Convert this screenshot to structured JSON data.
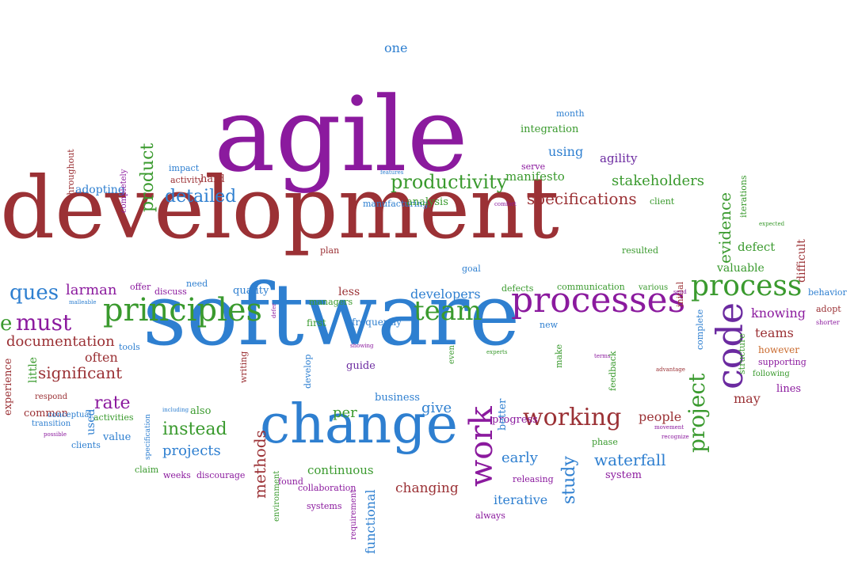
{
  "palette": {
    "purple": "#8b1a9e",
    "maroon": "#9b3135",
    "blue": "#2e7fd0",
    "green": "#3a9a2e",
    "orange": "#c9692c",
    "violet": "#6b2aa0"
  },
  "words": [
    {
      "text": "agile",
      "color": "purple",
      "vertical": false
    },
    {
      "text": "development",
      "color": "maroon",
      "vertical": false
    },
    {
      "text": "software",
      "color": "blue",
      "vertical": false
    },
    {
      "text": "change",
      "color": "blue",
      "vertical": false
    },
    {
      "text": "processes",
      "color": "purple",
      "vertical": false
    },
    {
      "text": "principles",
      "color": "green",
      "vertical": false
    },
    {
      "text": "process",
      "color": "green",
      "vertical": false
    },
    {
      "text": "code",
      "color": "violet",
      "vertical": true
    },
    {
      "text": "team",
      "color": "green",
      "vertical": false
    },
    {
      "text": "work",
      "color": "purple",
      "vertical": true
    },
    {
      "text": "working",
      "color": "maroon",
      "vertical": false
    },
    {
      "text": "must",
      "color": "purple",
      "vertical": false
    },
    {
      "text": "productivity",
      "color": "green",
      "vertical": false
    },
    {
      "text": "project",
      "color": "green",
      "vertical": true
    },
    {
      "text": "detailed",
      "color": "blue",
      "vertical": false
    },
    {
      "text": "specifications",
      "color": "maroon",
      "vertical": false
    },
    {
      "text": "stakeholders",
      "color": "green",
      "vertical": false
    },
    {
      "text": "product",
      "color": "green",
      "vertical": true
    },
    {
      "text": "significant",
      "color": "maroon",
      "vertical": false
    },
    {
      "text": "instead",
      "color": "green",
      "vertical": false
    },
    {
      "text": "waterfall",
      "color": "blue",
      "vertical": false
    },
    {
      "text": "study",
      "color": "blue",
      "vertical": true
    },
    {
      "text": "early",
      "color": "blue",
      "vertical": false
    },
    {
      "text": "one",
      "color": "blue",
      "vertical": false
    },
    {
      "text": "using",
      "color": "blue",
      "vertical": false
    },
    {
      "text": "agility",
      "color": "violet",
      "vertical": false
    },
    {
      "text": "integration",
      "color": "green",
      "vertical": false
    },
    {
      "text": "month",
      "color": "blue",
      "vertical": false
    },
    {
      "text": "manifesto",
      "color": "green",
      "vertical": false
    },
    {
      "text": "serve",
      "color": "purple",
      "vertical": false
    },
    {
      "text": "client",
      "color": "green",
      "vertical": false
    },
    {
      "text": "evidence",
      "color": "green",
      "vertical": true
    },
    {
      "text": "iterations",
      "color": "green",
      "vertical": true
    },
    {
      "text": "expected",
      "color": "green",
      "vertical": false
    },
    {
      "text": "defect",
      "color": "green",
      "vertical": false
    },
    {
      "text": "valuable",
      "color": "green",
      "vertical": false
    },
    {
      "text": "difficult",
      "color": "maroon",
      "vertical": true
    },
    {
      "text": "behavior",
      "color": "blue",
      "vertical": false
    },
    {
      "text": "adopt",
      "color": "maroon",
      "vertical": false
    },
    {
      "text": "shorter",
      "color": "purple",
      "vertical": false
    },
    {
      "text": "knowing",
      "color": "purple",
      "vertical": false
    },
    {
      "text": "teams",
      "color": "maroon",
      "vertical": false
    },
    {
      "text": "however",
      "color": "orange",
      "vertical": false
    },
    {
      "text": "supporting",
      "color": "purple",
      "vertical": false
    },
    {
      "text": "following",
      "color": "green",
      "vertical": false
    },
    {
      "text": "lines",
      "color": "purple",
      "vertical": false
    },
    {
      "text": "may",
      "color": "maroon",
      "vertical": false
    },
    {
      "text": "people",
      "color": "maroon",
      "vertical": false
    },
    {
      "text": "structure",
      "color": "green",
      "vertical": true
    },
    {
      "text": "complete",
      "color": "blue",
      "vertical": true
    },
    {
      "text": "initial",
      "color": "maroon",
      "vertical": true
    },
    {
      "text": "send",
      "color": "purple",
      "vertical": false
    },
    {
      "text": "various",
      "color": "green",
      "vertical": false
    },
    {
      "text": "advantage",
      "color": "maroon",
      "vertical": false
    },
    {
      "text": "terms",
      "color": "purple",
      "vertical": false
    },
    {
      "text": "feedback",
      "color": "green",
      "vertical": true
    },
    {
      "text": "make",
      "color": "green",
      "vertical": true
    },
    {
      "text": "phase",
      "color": "green",
      "vertical": false
    },
    {
      "text": "movement",
      "color": "purple",
      "vertical": false
    },
    {
      "text": "recognize",
      "color": "purple",
      "vertical": false
    },
    {
      "text": "system",
      "color": "purple",
      "vertical": false
    },
    {
      "text": "iterative",
      "color": "blue",
      "vertical": false
    },
    {
      "text": "releasing",
      "color": "purple",
      "vertical": false
    },
    {
      "text": "always",
      "color": "purple",
      "vertical": false
    },
    {
      "text": "changing",
      "color": "maroon",
      "vertical": false
    },
    {
      "text": "continuous",
      "color": "green",
      "vertical": false
    },
    {
      "text": "functional",
      "color": "blue",
      "vertical": true
    },
    {
      "text": "requirement",
      "color": "purple",
      "vertical": true
    },
    {
      "text": "systems",
      "color": "purple",
      "vertical": false
    },
    {
      "text": "collaboration",
      "color": "purple",
      "vertical": false
    },
    {
      "text": "found",
      "color": "purple",
      "vertical": false
    },
    {
      "text": "environment",
      "color": "green",
      "vertical": true
    },
    {
      "text": "methods",
      "color": "maroon",
      "vertical": true
    },
    {
      "text": "discourage",
      "color": "purple",
      "vertical": false
    },
    {
      "text": "weeks",
      "color": "purple",
      "vertical": false
    },
    {
      "text": "claim",
      "color": "green",
      "vertical": false
    },
    {
      "text": "specification",
      "color": "blue",
      "vertical": true
    },
    {
      "text": "projects",
      "color": "blue",
      "vertical": false
    },
    {
      "text": "value",
      "color": "blue",
      "vertical": false
    },
    {
      "text": "clients",
      "color": "blue",
      "vertical": false
    },
    {
      "text": "activities",
      "color": "green",
      "vertical": false
    },
    {
      "text": "also",
      "color": "green",
      "vertical": false
    },
    {
      "text": "including",
      "color": "blue",
      "vertical": false
    },
    {
      "text": "used",
      "color": "blue",
      "vertical": true
    },
    {
      "text": "rate",
      "color": "purple",
      "vertical": false
    },
    {
      "text": "common",
      "color": "maroon",
      "vertical": false
    },
    {
      "text": "transition",
      "color": "blue",
      "vertical": false
    },
    {
      "text": "possible",
      "color": "purple",
      "vertical": false
    },
    {
      "text": "conceptual",
      "color": "blue",
      "vertical": false
    },
    {
      "text": "respond",
      "color": "maroon",
      "vertical": false
    },
    {
      "text": "little",
      "color": "green",
      "vertical": true
    },
    {
      "text": "experience",
      "color": "maroon",
      "vertical": true
    },
    {
      "text": "documentation",
      "color": "maroon",
      "vertical": false
    },
    {
      "text": "tools",
      "color": "blue",
      "vertical": false
    },
    {
      "text": "often",
      "color": "maroon",
      "vertical": false
    },
    {
      "text": "ques",
      "color": "blue",
      "vertical": false
    },
    {
      "text": "e",
      "color": "green",
      "vertical": false
    },
    {
      "text": "larman",
      "color": "purple",
      "vertical": false
    },
    {
      "text": "malleable",
      "color": "blue",
      "vertical": false
    },
    {
      "text": "offer",
      "color": "purple",
      "vertical": false
    },
    {
      "text": "discuss",
      "color": "purple",
      "vertical": false
    },
    {
      "text": "need",
      "color": "blue",
      "vertical": false
    },
    {
      "text": "quality",
      "color": "blue",
      "vertical": false
    },
    {
      "text": "less",
      "color": "maroon",
      "vertical": false
    },
    {
      "text": "defer",
      "color": "purple",
      "vertical": true
    },
    {
      "text": "managers",
      "color": "green",
      "vertical": false
    },
    {
      "text": "first",
      "color": "green",
      "vertical": false
    },
    {
      "text": "frequently",
      "color": "blue",
      "vertical": false
    },
    {
      "text": "developers",
      "color": "blue",
      "vertical": false
    },
    {
      "text": "defects",
      "color": "green",
      "vertical": false
    },
    {
      "text": "communication",
      "color": "green",
      "vertical": false
    },
    {
      "text": "new",
      "color": "blue",
      "vertical": false
    },
    {
      "text": "showing",
      "color": "purple",
      "vertical": false
    },
    {
      "text": "experts",
      "color": "green",
      "vertical": false
    },
    {
      "text": "writing",
      "color": "maroon",
      "vertical": true
    },
    {
      "text": "develop",
      "color": "blue",
      "vertical": true
    },
    {
      "text": "guide",
      "color": "violet",
      "vertical": false
    },
    {
      "text": "even",
      "color": "green",
      "vertical": true
    },
    {
      "text": "business",
      "color": "blue",
      "vertical": false
    },
    {
      "text": "per",
      "color": "green",
      "vertical": false
    },
    {
      "text": "give",
      "color": "blue",
      "vertical": false
    },
    {
      "text": "progress",
      "color": "purple",
      "vertical": false
    },
    {
      "text": "better",
      "color": "blue",
      "vertical": true
    },
    {
      "text": "goal",
      "color": "blue",
      "vertical": false
    },
    {
      "text": "plan",
      "color": "maroon",
      "vertical": false
    },
    {
      "text": "resulted",
      "color": "green",
      "vertical": false
    },
    {
      "text": "manufacturing",
      "color": "blue",
      "vertical": false
    },
    {
      "text": "analysis",
      "color": "green",
      "vertical": false
    },
    {
      "text": "comfort",
      "color": "purple",
      "vertical": false
    },
    {
      "text": "features",
      "color": "blue",
      "vertical": false
    },
    {
      "text": "impact",
      "color": "blue",
      "vertical": false
    },
    {
      "text": "activity",
      "color": "maroon",
      "vertical": false
    },
    {
      "text": "hard",
      "color": "maroon",
      "vertical": false
    },
    {
      "text": "adopting",
      "color": "blue",
      "vertical": false
    },
    {
      "text": "throughout",
      "color": "maroon",
      "vertical": true
    },
    {
      "text": "completely",
      "color": "purple",
      "vertical": true
    }
  ]
}
